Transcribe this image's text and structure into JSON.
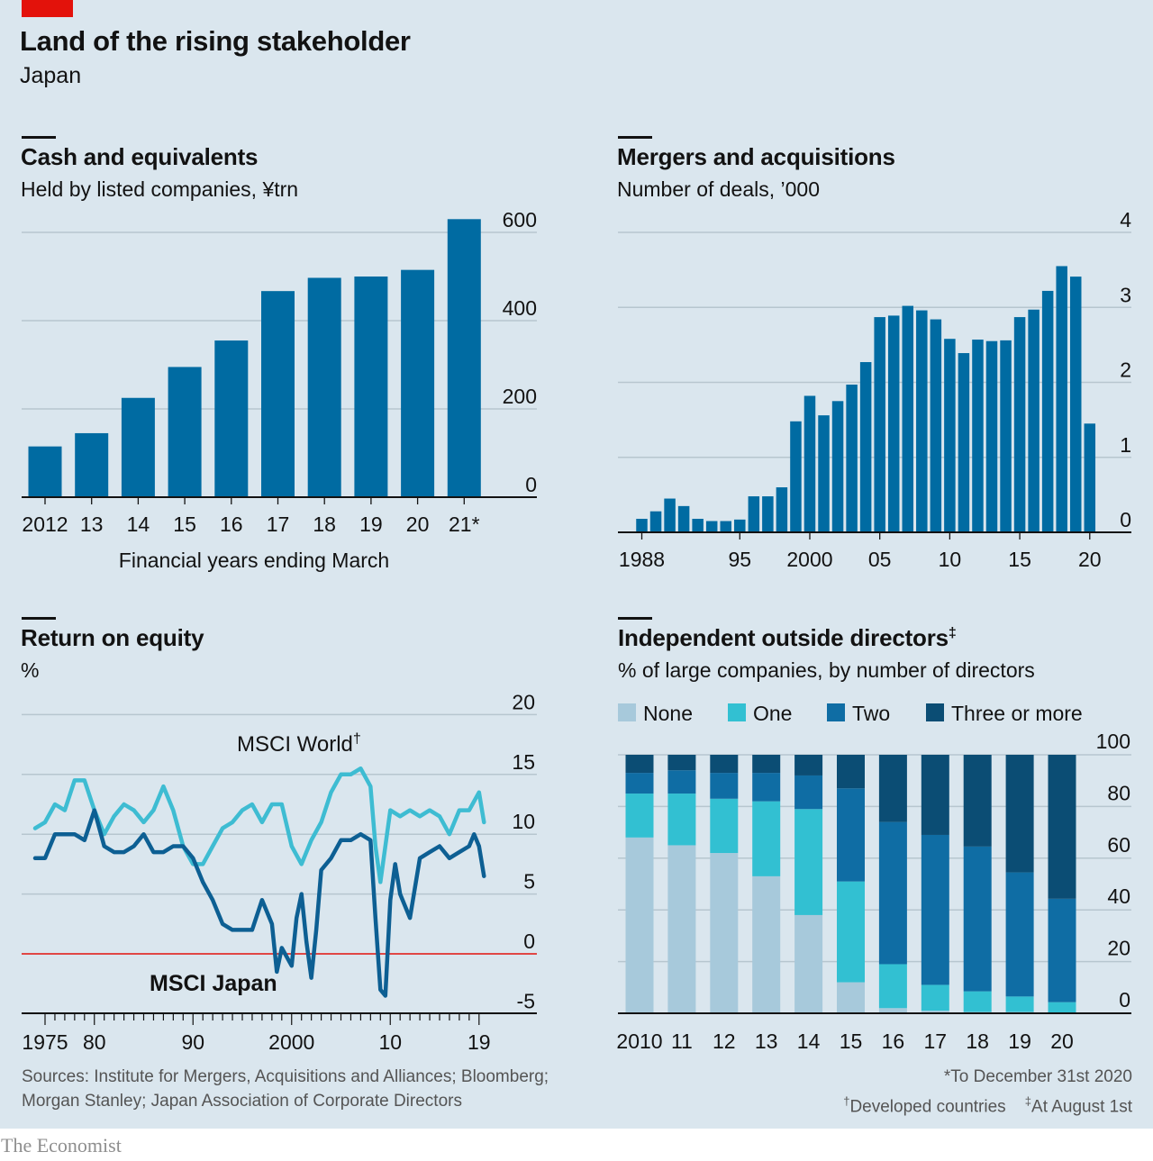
{
  "header": {
    "title": "Land of the rising stakeholder",
    "subtitle": "Japan"
  },
  "panels": {
    "cash": {
      "title": "Cash and equivalents",
      "subtitle": "Held by listed companies, ¥trn"
    },
    "mna": {
      "title": "Mergers and acquisitions",
      "subtitle": "Number of deals, ’000"
    },
    "roe": {
      "title": "Return on equity",
      "subtitle": "%"
    },
    "directors": {
      "title": "Independent outside directors",
      "title_mark": "‡",
      "subtitle": "% of large companies, by number of directors"
    }
  },
  "footer": {
    "sources_line1": "Sources: Institute for Mergers, Acquisitions and Alliances; Bloomberg;",
    "sources_line2": "Morgan Stanley; Japan Association of Corporate Directors",
    "note1": "*To December 31st 2020",
    "note2_mark": "†",
    "note2": "Developed countries",
    "note3_mark": "‡",
    "note3": "At August 1st",
    "brand": "The Economist"
  },
  "colors": {
    "bar": "#006ba2",
    "light": "#a7c9db",
    "cyan": "#32c0d2",
    "mid": "#0f6da4",
    "dark": "#0b4d74",
    "world": "#3ebcd2",
    "japan": "#0d5f93",
    "zero": "#e3120b"
  },
  "chart_data": [
    {
      "id": "cash",
      "type": "bar",
      "categories": [
        "2012",
        "13",
        "14",
        "15",
        "16",
        "17",
        "18",
        "19",
        "20",
        "21*"
      ],
      "values": [
        115,
        145,
        225,
        295,
        355,
        467,
        497,
        500,
        515,
        630
      ],
      "xlabel": "Financial years ending March",
      "ylim": [
        0,
        600
      ],
      "yticks": [
        0,
        200,
        400,
        600
      ],
      "ytick_labels": [
        "0",
        "200",
        "400",
        "600"
      ],
      "grid": true
    },
    {
      "id": "mna",
      "type": "bar",
      "x_start": 1988,
      "values": [
        0.18,
        0.28,
        0.45,
        0.35,
        0.18,
        0.15,
        0.15,
        0.17,
        0.48,
        0.48,
        0.6,
        1.48,
        1.82,
        1.56,
        1.75,
        1.97,
        2.27,
        2.87,
        2.89,
        3.02,
        2.96,
        2.84,
        2.58,
        2.39,
        2.57,
        2.55,
        2.56,
        2.87,
        2.97,
        3.22,
        3.55,
        3.41,
        1.45
      ],
      "ylim": [
        0,
        4
      ],
      "yticks": [
        0,
        1,
        2,
        3,
        4
      ],
      "ytick_labels": [
        "0",
        "1",
        "2",
        "3",
        "4"
      ],
      "xticks": [
        1988,
        1995,
        2000,
        2005,
        2010,
        2015,
        2020
      ],
      "xtick_labels": [
        "1988",
        "95",
        "2000",
        "05",
        "10",
        "15",
        "20"
      ],
      "grid": true
    },
    {
      "id": "roe",
      "type": "line",
      "xlim": [
        1974,
        2020
      ],
      "ylim": [
        -5,
        20
      ],
      "yticks": [
        -5,
        0,
        5,
        10,
        15,
        20
      ],
      "ytick_labels": [
        "-5",
        "0",
        "5",
        "10",
        "15",
        "20"
      ],
      "xticks": [
        1975,
        1980,
        1990,
        2000,
        2010,
        2019
      ],
      "xtick_labels": [
        "1975",
        "80",
        "90",
        "2000",
        "10",
        "19"
      ],
      "series": [
        {
          "name": "MSCI World",
          "name_mark": "†",
          "x": [
            1974,
            1975,
            1976,
            1977,
            1978,
            1979,
            1980,
            1981,
            1982,
            1983,
            1984,
            1985,
            1986,
            1987,
            1988,
            1989,
            1990,
            1991,
            1992,
            1993,
            1994,
            1995,
            1996,
            1997,
            1998,
            1999,
            2000,
            2001,
            2002,
            2003,
            2004,
            2005,
            2006,
            2007,
            2008,
            2008.5,
            2009,
            2010,
            2011,
            2012,
            2013,
            2014,
            2015,
            2016,
            2017,
            2018,
            2019,
            2019.5
          ],
          "y": [
            10.5,
            11,
            12.5,
            12,
            14.5,
            14.5,
            12,
            10,
            11.5,
            12.5,
            12,
            11,
            12,
            14,
            12,
            9,
            7.5,
            7.5,
            9,
            10.5,
            11,
            12,
            12.5,
            11,
            12.5,
            12.5,
            9,
            7.5,
            9.5,
            11,
            13.5,
            15,
            15,
            15.5,
            14,
            9,
            6,
            12,
            11.5,
            12,
            11.5,
            12,
            11.5,
            10,
            12,
            12,
            13.5,
            11
          ]
        },
        {
          "name": "MSCI Japan",
          "x": [
            1974,
            1975,
            1976,
            1977,
            1978,
            1979,
            1980,
            1981,
            1982,
            1983,
            1984,
            1985,
            1986,
            1987,
            1988,
            1989,
            1990,
            1991,
            1992,
            1993,
            1994,
            1995,
            1996,
            1997,
            1998,
            1998.5,
            1999,
            2000,
            2000.5,
            2001,
            2001.5,
            2002,
            2002.5,
            2003,
            2004,
            2005,
            2006,
            2007,
            2008,
            2008.5,
            2009,
            2009.5,
            2010,
            2010.5,
            2011,
            2012,
            2013,
            2014,
            2015,
            2016,
            2017,
            2018,
            2018.5,
            2019,
            2019.5
          ],
          "y": [
            8,
            8,
            10,
            10,
            10,
            9.5,
            12,
            9,
            8.5,
            8.5,
            9,
            10,
            8.5,
            8.5,
            9,
            9,
            8,
            6,
            4.5,
            2.5,
            2,
            2,
            2,
            4.5,
            2.5,
            -1.5,
            0.5,
            -1,
            3,
            5,
            1,
            -2,
            2,
            7,
            8,
            9.5,
            9.5,
            10,
            9.5,
            3,
            -3,
            -3.5,
            4.5,
            7.5,
            5,
            3,
            8,
            8.5,
            9,
            8,
            8.5,
            9,
            10,
            9,
            6.5
          ]
        }
      ]
    },
    {
      "id": "directors",
      "type": "bar",
      "stacked": true,
      "categories": [
        "2010",
        "11",
        "12",
        "13",
        "14",
        "15",
        "16",
        "17",
        "18",
        "19",
        "20"
      ],
      "ylim": [
        0,
        100
      ],
      "yticks": [
        0,
        20,
        40,
        60,
        80,
        100
      ],
      "ytick_labels": [
        "0",
        "20",
        "40",
        "60",
        "80",
        "100"
      ],
      "series": [
        {
          "name": "None",
          "values": [
            68,
            65,
            62,
            53,
            38,
            12,
            2,
            1,
            0.5,
            0.5,
            0.3
          ]
        },
        {
          "name": "One",
          "values": [
            17,
            20,
            21,
            29,
            41,
            39,
            17,
            10,
            8,
            6,
            4
          ]
        },
        {
          "name": "Two",
          "values": [
            8,
            9,
            10,
            11,
            13,
            36,
            55,
            58,
            56,
            48,
            40
          ]
        },
        {
          "name": "Three or more",
          "values": [
            7,
            6,
            7,
            7,
            8,
            13,
            26,
            31,
            35.5,
            45.5,
            55.7
          ]
        }
      ]
    }
  ]
}
